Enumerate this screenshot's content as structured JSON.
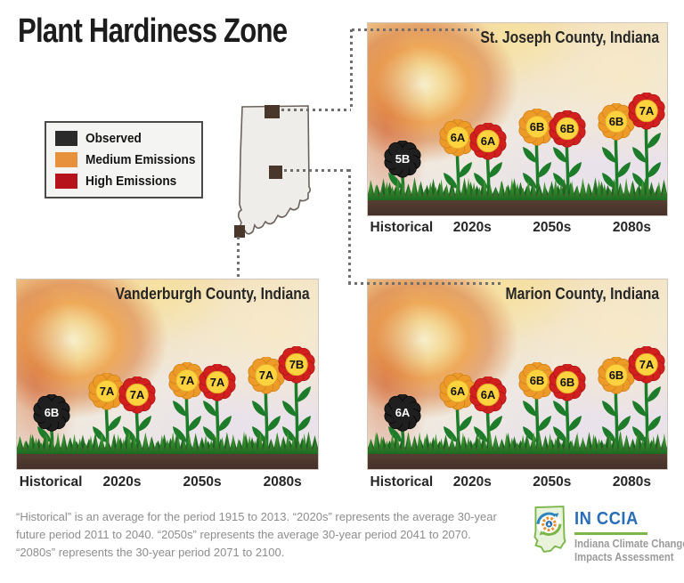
{
  "title": "Plant Hardiness Zone",
  "legend": {
    "items": [
      {
        "label": "Observed",
        "type": "observed"
      },
      {
        "label": "Medium Emissions",
        "type": "medium"
      },
      {
        "label": "High Emissions",
        "type": "high"
      }
    ]
  },
  "flower_colors": {
    "observed": {
      "petal": "#1f1f1f",
      "edge": "#000000",
      "center": "#1f1f1f",
      "ring": "#1f1f1f",
      "text": "#ffffff"
    },
    "medium": {
      "petal": "#EE9A28",
      "edge": "#c97d16",
      "center": "#FFD33F",
      "ring": "#e2a92a",
      "text": "#111111"
    },
    "high": {
      "petal": "#D2201F",
      "edge": "#a51317",
      "center": "#FFD33F",
      "ring": "#e2a92a",
      "text": "#111111"
    }
  },
  "periods": [
    "Historical",
    "2020s",
    "2050s",
    "2080s"
  ],
  "panels": [
    {
      "id": "st-joseph",
      "title": "St. Joseph County, Indiana",
      "groups": [
        {
          "period": "Historical",
          "flowers": [
            {
              "zone": "5B",
              "type": "observed",
              "stem": 22
            }
          ]
        },
        {
          "period": "2020s",
          "flowers": [
            {
              "zone": "6A",
              "type": "medium",
              "stem": 46
            },
            {
              "zone": "6A",
              "type": "high",
              "stem": 42
            }
          ]
        },
        {
          "period": "2050s",
          "flowers": [
            {
              "zone": "6B",
              "type": "medium",
              "stem": 58
            },
            {
              "zone": "6B",
              "type": "high",
              "stem": 56
            }
          ]
        },
        {
          "period": "2080s",
          "flowers": [
            {
              "zone": "6B",
              "type": "medium",
              "stem": 64
            },
            {
              "zone": "7A",
              "type": "high",
              "stem": 76
            }
          ]
        }
      ]
    },
    {
      "id": "vanderburgh",
      "title": "Vanderburgh County, Indiana",
      "groups": [
        {
          "period": "Historical",
          "flowers": [
            {
              "zone": "6B",
              "type": "observed",
              "stem": 22
            }
          ]
        },
        {
          "period": "2020s",
          "flowers": [
            {
              "zone": "7A",
              "type": "medium",
              "stem": 46
            },
            {
              "zone": "7A",
              "type": "high",
              "stem": 42
            }
          ]
        },
        {
          "period": "2050s",
          "flowers": [
            {
              "zone": "7A",
              "type": "medium",
              "stem": 58
            },
            {
              "zone": "7A",
              "type": "high",
              "stem": 56
            }
          ]
        },
        {
          "period": "2080s",
          "flowers": [
            {
              "zone": "7A",
              "type": "medium",
              "stem": 64
            },
            {
              "zone": "7B",
              "type": "high",
              "stem": 76
            }
          ]
        }
      ]
    },
    {
      "id": "marion",
      "title": "Marion County, Indiana",
      "groups": [
        {
          "period": "Historical",
          "flowers": [
            {
              "zone": "6A",
              "type": "observed",
              "stem": 22
            }
          ]
        },
        {
          "period": "2020s",
          "flowers": [
            {
              "zone": "6A",
              "type": "medium",
              "stem": 46
            },
            {
              "zone": "6A",
              "type": "high",
              "stem": 42
            }
          ]
        },
        {
          "period": "2050s",
          "flowers": [
            {
              "zone": "6B",
              "type": "medium",
              "stem": 58
            },
            {
              "zone": "6B",
              "type": "high",
              "stem": 56
            }
          ]
        },
        {
          "period": "2080s",
          "flowers": [
            {
              "zone": "6B",
              "type": "medium",
              "stem": 64
            },
            {
              "zone": "7A",
              "type": "high",
              "stem": 76
            }
          ]
        }
      ]
    }
  ],
  "map": {
    "state": "Indiana",
    "counties": [
      "St. Joseph",
      "Marion",
      "Vanderburgh"
    ]
  },
  "footnote": {
    "lines": [
      "“Historical” is an average for the period 1915 to 2013. “2020s” represents the average 30-year",
      "future period 2011 to 2040. “2050s” represents the average 30-year period 2041 to 2070.",
      "“2080s” represents the 30-year period 2071 to 2100."
    ]
  },
  "logo": {
    "acronym": "IN CCIA",
    "line1": "Indiana Climate Change",
    "line2": "Impacts Assessment"
  },
  "colors": {
    "observed": "#2B2B2B",
    "medium_emissions": "#E8913C",
    "high_emissions": "#B5121B",
    "soil": "#4B3429",
    "grass": "#2E8B2E",
    "dotted_line": "#6F6F6F",
    "logo_blue": "#2A6DB7",
    "logo_green": "#7AB648"
  },
  "chart_data": {
    "type": "table",
    "title": "Plant Hardiness Zone",
    "categories": [
      "Historical",
      "2020s",
      "2050s",
      "2080s"
    ],
    "legend": [
      "Observed",
      "Medium Emissions",
      "High Emissions"
    ],
    "series": [
      {
        "name": "St. Joseph County, Indiana",
        "observed": [
          "5B",
          null,
          null,
          null
        ],
        "medium_emissions": [
          null,
          "6A",
          "6B",
          "6B"
        ],
        "high_emissions": [
          null,
          "6A",
          "6B",
          "7A"
        ]
      },
      {
        "name": "Vanderburgh County, Indiana",
        "observed": [
          "6B",
          null,
          null,
          null
        ],
        "medium_emissions": [
          null,
          "7A",
          "7A",
          "7A"
        ],
        "high_emissions": [
          null,
          "7A",
          "7A",
          "7B"
        ]
      },
      {
        "name": "Marion County, Indiana",
        "observed": [
          "6A",
          null,
          null,
          null
        ],
        "medium_emissions": [
          null,
          "6A",
          "6B",
          "6B"
        ],
        "high_emissions": [
          null,
          "6A",
          "6B",
          "7A"
        ]
      }
    ]
  }
}
